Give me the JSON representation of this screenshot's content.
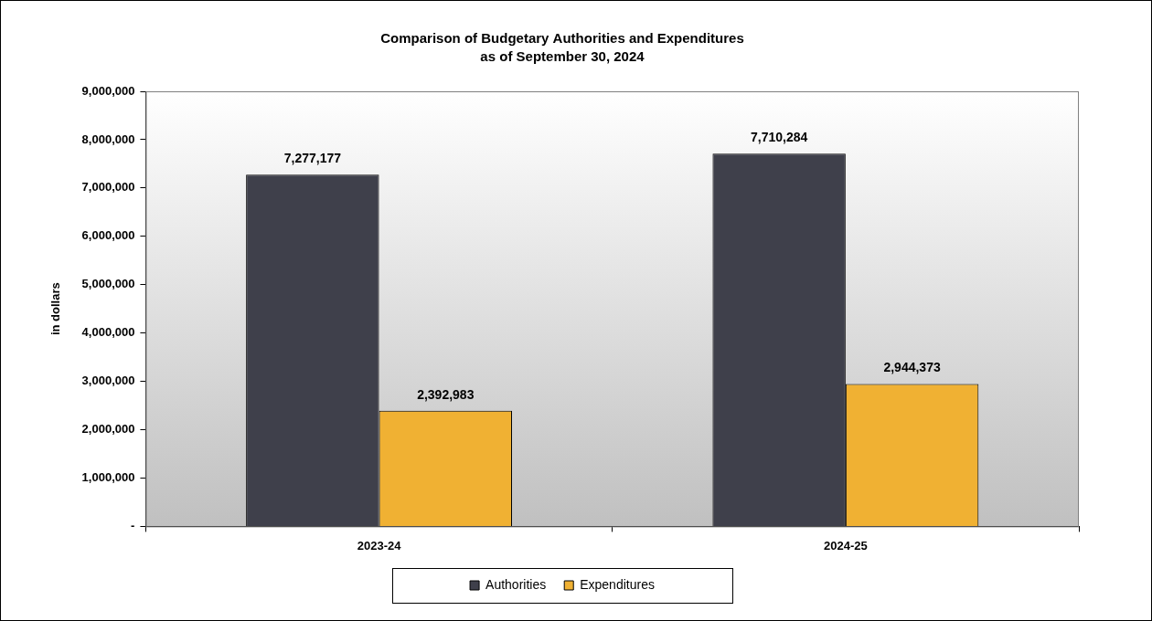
{
  "chart_data": {
    "type": "bar",
    "title": "Comparison of Budgetary Authorities and Expenditures",
    "subtitle": "as of September 30, 2024",
    "y_label": "in dollars",
    "categories": [
      "2023-24",
      "2024-25"
    ],
    "series": [
      {
        "name": "Authorities",
        "color": "#3f404b",
        "values": [
          7277177,
          7710284
        ],
        "value_labels": [
          "7,277,177",
          "7,710,284"
        ]
      },
      {
        "name": "Expenditures",
        "color": "#f0b133",
        "values": [
          2392983,
          2944373
        ],
        "value_labels": [
          "2,392,983",
          "2,944,373"
        ]
      }
    ],
    "ylim": [
      0,
      9000000
    ],
    "yticks": [
      {
        "value": 0,
        "label": "-"
      },
      {
        "value": 1000000,
        "label": "1,000,000"
      },
      {
        "value": 2000000,
        "label": "2,000,000"
      },
      {
        "value": 3000000,
        "label": "3,000,000"
      },
      {
        "value": 4000000,
        "label": "4,000,000"
      },
      {
        "value": 5000000,
        "label": "5,000,000"
      },
      {
        "value": 6000000,
        "label": "6,000,000"
      },
      {
        "value": 7000000,
        "label": "7,000,000"
      },
      {
        "value": 8000000,
        "label": "8,000,000"
      },
      {
        "value": 9000000,
        "label": "9,000,000"
      }
    ],
    "grid": false,
    "legend": "bottom",
    "data_labels": true
  }
}
